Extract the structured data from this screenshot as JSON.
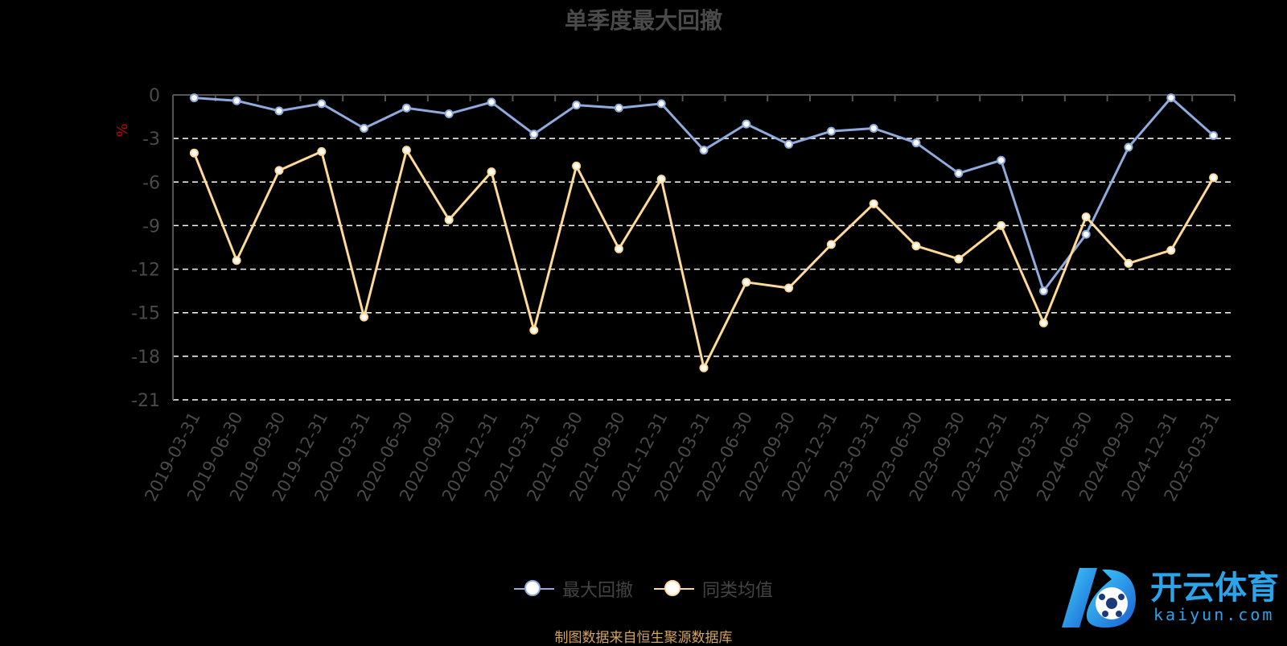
{
  "chart_data": {
    "type": "line",
    "title": "单季度最大回撤",
    "ylabel": "%",
    "ylim": [
      -21,
      0
    ],
    "yticks": [
      0,
      -3,
      -6,
      -9,
      -12,
      -15,
      -18,
      -21
    ],
    "grid": true,
    "legend_position": "bottom",
    "categories": [
      "2019-03-31",
      "2019-06-30",
      "2019-09-30",
      "2019-12-31",
      "2020-03-31",
      "2020-06-30",
      "2020-09-30",
      "2020-12-31",
      "2021-03-31",
      "2021-06-30",
      "2021-09-30",
      "2021-12-31",
      "2022-03-31",
      "2022-06-30",
      "2022-09-30",
      "2022-12-31",
      "2023-03-31",
      "2023-06-30",
      "2023-09-30",
      "2023-12-31",
      "2024-03-31",
      "2024-06-30",
      "2024-09-30",
      "2024-12-31",
      "2025-03-31"
    ],
    "series": [
      {
        "name": "最大回撤",
        "color": "#8faadc",
        "values": [
          -0.2,
          -0.4,
          -1.1,
          -0.6,
          -2.3,
          -0.9,
          -1.3,
          -0.5,
          -2.7,
          -0.7,
          -0.9,
          -0.6,
          -3.8,
          -2.0,
          -3.4,
          -2.5,
          -2.3,
          -3.3,
          -5.4,
          -4.5,
          -13.5,
          -9.6,
          -3.6,
          -0.2,
          -2.8
        ]
      },
      {
        "name": "同类均值",
        "color": "#ffd997",
        "values": [
          -4.0,
          -11.4,
          -5.2,
          -3.9,
          -15.3,
          -3.8,
          -8.6,
          -5.3,
          -16.2,
          -4.9,
          -10.6,
          -5.8,
          -18.8,
          -12.9,
          -13.3,
          -10.3,
          -7.5,
          -10.4,
          -11.3,
          -9.0,
          -15.7,
          -8.4,
          -11.6,
          -10.7,
          -5.7
        ]
      }
    ]
  },
  "source_note": "制图数据来自恒生聚源数据库",
  "watermark": {
    "name": "开云体育",
    "sub": "kaiyun.com"
  }
}
